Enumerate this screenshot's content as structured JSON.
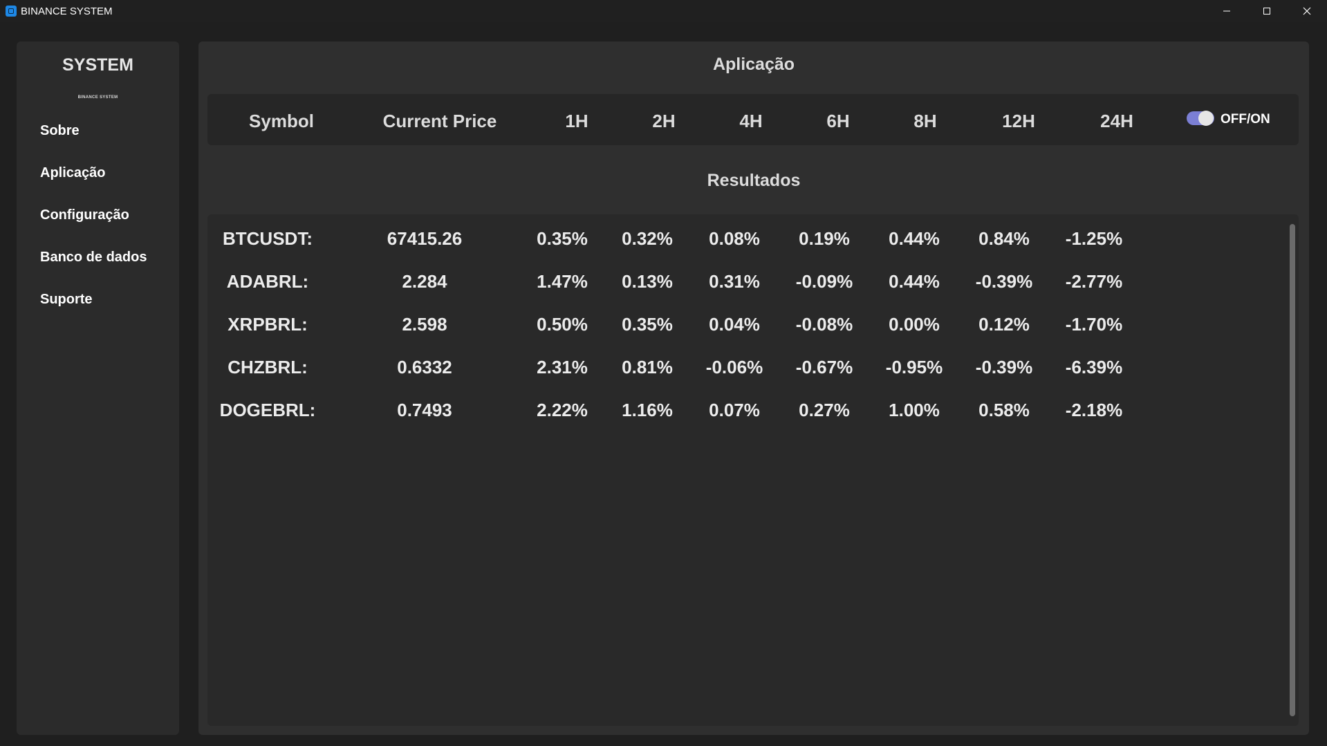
{
  "window": {
    "title": "BINANCE SYSTEM"
  },
  "sidebar": {
    "title": "SYSTEM",
    "subtitle": "BINANCE SYSTEM",
    "items": [
      {
        "label": "Sobre"
      },
      {
        "label": "Aplicação"
      },
      {
        "label": "Configuração"
      },
      {
        "label": "Banco de dados"
      },
      {
        "label": "Suporte"
      }
    ]
  },
  "main": {
    "title": "Aplicação",
    "columns": [
      "Symbol",
      "Current Price",
      "1H",
      "2H",
      "4H",
      "6H",
      "8H",
      "12H",
      "24H"
    ],
    "toggle": {
      "label": "OFF/ON",
      "state": "on",
      "color": "#7b7fd4"
    },
    "results_title": "Resultados",
    "rows": [
      {
        "symbol": "BTCUSDT:",
        "price": "67415.26",
        "changes": [
          "0.35%",
          "0.32%",
          "0.08%",
          "0.19%",
          "0.44%",
          "0.84%",
          "-1.25%"
        ]
      },
      {
        "symbol": "ADABRL:",
        "price": "2.284",
        "changes": [
          "1.47%",
          "0.13%",
          "0.31%",
          "-0.09%",
          "0.44%",
          "-0.39%",
          "-2.77%"
        ]
      },
      {
        "symbol": "XRPBRL:",
        "price": "2.598",
        "changes": [
          "0.50%",
          "0.35%",
          "0.04%",
          "-0.08%",
          "0.00%",
          "0.12%",
          "-1.70%"
        ]
      },
      {
        "symbol": "CHZBRL:",
        "price": "0.6332",
        "changes": [
          "2.31%",
          "0.81%",
          "-0.06%",
          "-0.67%",
          "-0.95%",
          "-0.39%",
          "-6.39%"
        ]
      },
      {
        "symbol": "DOGEBRL:",
        "price": "0.7493",
        "changes": [
          "2.22%",
          "1.16%",
          "0.07%",
          "0.27%",
          "1.00%",
          "0.58%",
          "-2.18%"
        ]
      }
    ]
  },
  "icons": {
    "app": "app-logo-icon",
    "minimize": "minimize-icon",
    "maximize": "maximize-icon",
    "close": "close-icon"
  },
  "colors": {
    "accent": "#7b7fd4",
    "app_icon": "#1e88e5"
  }
}
